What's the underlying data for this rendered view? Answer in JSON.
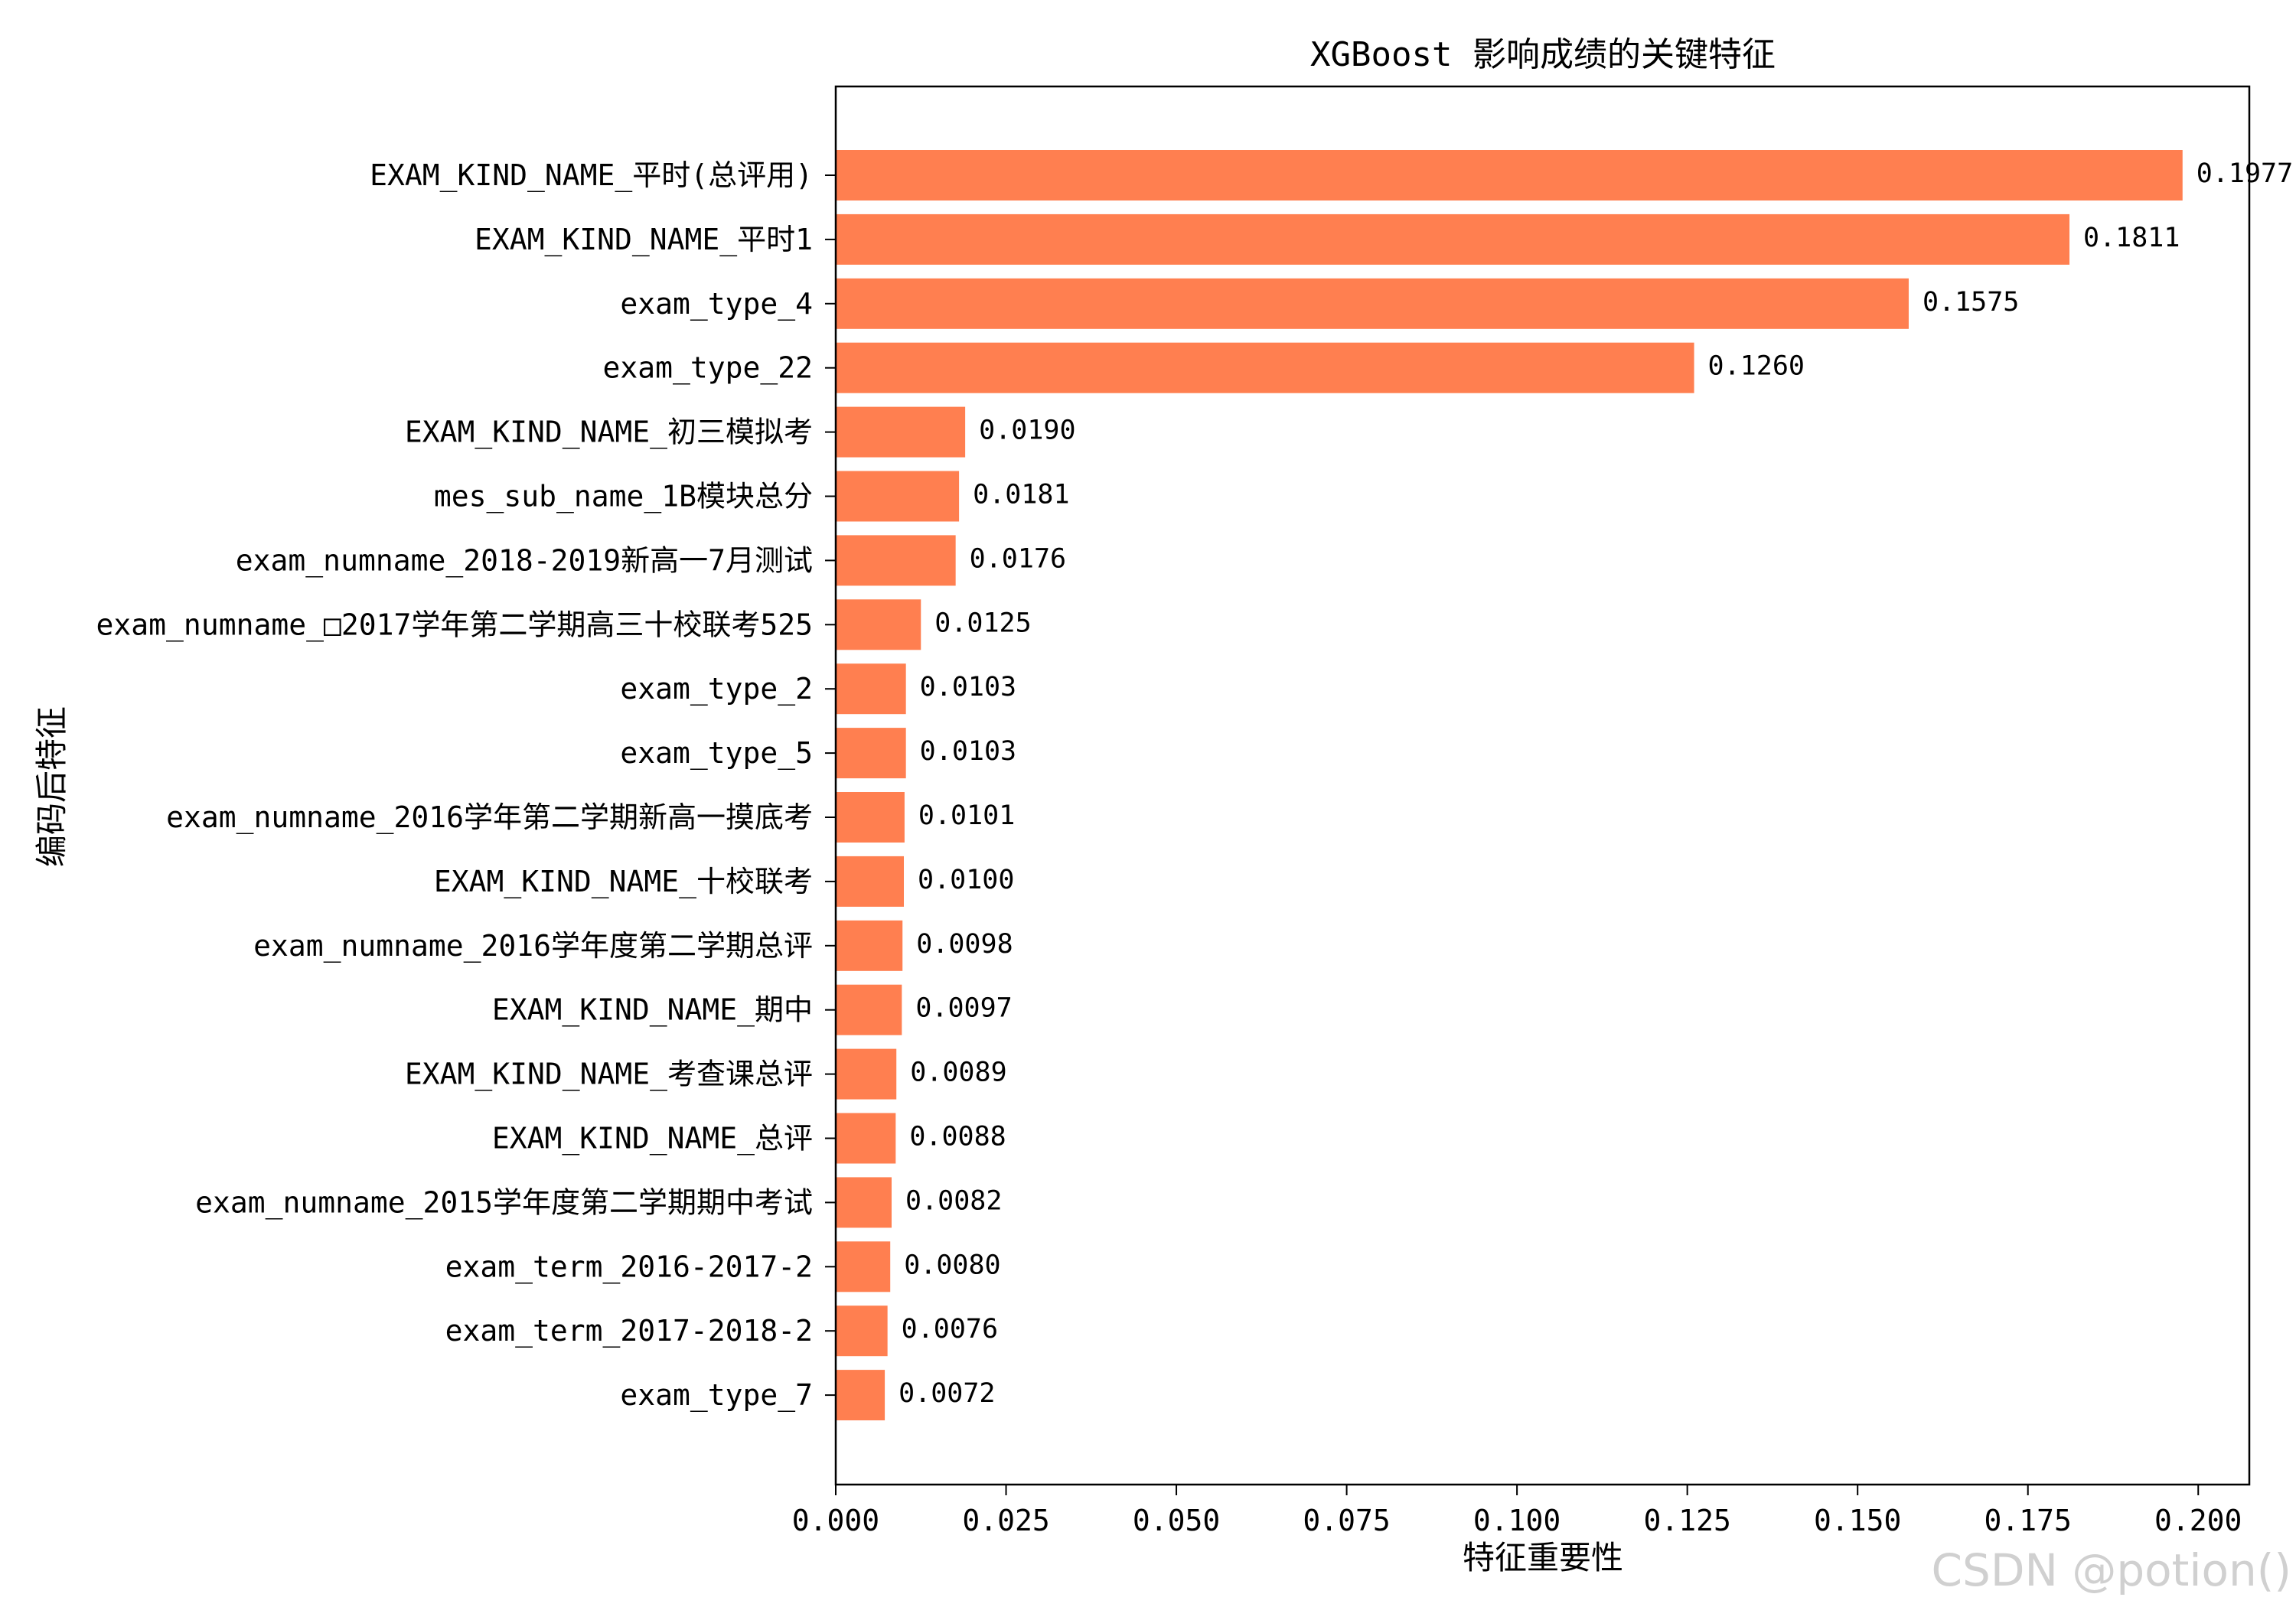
{
  "chart_data": {
    "type": "bar",
    "orientation": "horizontal",
    "title": "XGBoost 影响成绩的关键特征",
    "xlabel": "特征重要性",
    "ylabel": "编码后特征",
    "xlim": [
      0,
      0.2075
    ],
    "xticks": [
      0.0,
      0.025,
      0.05,
      0.075,
      0.1,
      0.125,
      0.15,
      0.175,
      0.2
    ],
    "xtick_labels": [
      "0.000",
      "0.025",
      "0.050",
      "0.075",
      "0.100",
      "0.125",
      "0.150",
      "0.175",
      "0.200"
    ],
    "grid": false,
    "bar_color": "#ff7f50",
    "categories": [
      "EXAM_KIND_NAME_平时(总评用)",
      "EXAM_KIND_NAME_平时1",
      "exam_type_4",
      "exam_type_22",
      "EXAM_KIND_NAME_初三模拟考",
      "mes_sub_name_1B模块总分",
      "exam_numname_2018-2019新高一7月测试",
      "exam_numname_□2017学年第二学期高三十校联考525",
      "exam_type_2",
      "exam_type_5",
      "exam_numname_2016学年第二学期新高一摸底考",
      "EXAM_KIND_NAME_十校联考",
      "exam_numname_2016学年度第二学期总评",
      "EXAM_KIND_NAME_期中",
      "EXAM_KIND_NAME_考查课总评",
      "EXAM_KIND_NAME_总评",
      "exam_numname_2015学年度第二学期期中考试",
      "exam_term_2016-2017-2",
      "exam_term_2017-2018-2",
      "exam_type_7"
    ],
    "values": [
      0.1977,
      0.1811,
      0.1575,
      0.126,
      0.019,
      0.0181,
      0.0176,
      0.0125,
      0.0103,
      0.0103,
      0.0101,
      0.01,
      0.0098,
      0.0097,
      0.0089,
      0.0088,
      0.0082,
      0.008,
      0.0076,
      0.0072
    ],
    "value_labels": [
      "0.1977",
      "0.1811",
      "0.1575",
      "0.1260",
      "0.0190",
      "0.0181",
      "0.0176",
      "0.0125",
      "0.0103",
      "0.0103",
      "0.0101",
      "0.0100",
      "0.0098",
      "0.0097",
      "0.0089",
      "0.0088",
      "0.0082",
      "0.0080",
      "0.0076",
      "0.0072"
    ]
  },
  "watermark": "CSDN @potion()"
}
